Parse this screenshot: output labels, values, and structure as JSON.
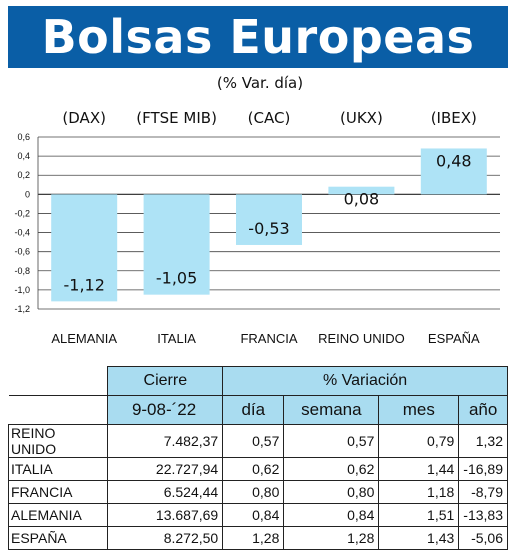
{
  "title": "Bolsas Europeas",
  "subtitle": "(% Var. día)",
  "chart_data": {
    "type": "bar",
    "indices": [
      "(DAX)",
      "(FTSE MIB)",
      "(CAC)",
      "(UKX)",
      "(IBEX)"
    ],
    "categories": [
      "ALEMANIA",
      "ITALIA",
      "FRANCIA",
      "REINO UNIDO",
      "ESPAÑA"
    ],
    "values": [
      -1.12,
      -1.05,
      -0.53,
      0.08,
      0.48
    ],
    "value_labels": [
      "-1,12",
      "-1,05",
      "-0,53",
      "0,08",
      "0,48"
    ],
    "yticks": [
      0.6,
      0.4,
      0.2,
      0,
      -0.2,
      -0.4,
      -0.6,
      -0.8,
      -1.0,
      -1.2
    ],
    "ytick_labels": [
      "0,6",
      "0,4",
      "0,2",
      "0",
      "-0,2",
      "-0,4",
      "-0,6",
      "-0,8",
      "-1,0",
      "-1,2"
    ],
    "ylim": [
      -1.2,
      0.6
    ],
    "grid": true,
    "bar_color": "#aee3f6"
  },
  "table": {
    "header_cierre": "Cierre",
    "header_variacion": "% Variación",
    "header_date": "9-08-´22",
    "header_dia": "día",
    "header_semana": "semana",
    "header_mes": "mes",
    "header_ano": "año",
    "rows": [
      {
        "name": "REINO UNIDO",
        "cierre": "7.482,37",
        "dia": "0,57",
        "semana": "0,57",
        "mes": "0,79",
        "ano": "1,32"
      },
      {
        "name": "ITALIA",
        "cierre": "22.727,94",
        "dia": "0,62",
        "semana": "0,62",
        "mes": "1,44",
        "ano": "-16,89"
      },
      {
        "name": "FRANCIA",
        "cierre": "6.524,44",
        "dia": "0,80",
        "semana": "0,80",
        "mes": "1,18",
        "ano": "-8,79"
      },
      {
        "name": "ALEMANIA",
        "cierre": "13.687,69",
        "dia": "0,84",
        "semana": "0,84",
        "mes": "1,51",
        "ano": "-13,83"
      },
      {
        "name": "ESPAÑA",
        "cierre": "8.272,50",
        "dia": "1,28",
        "semana": "1,28",
        "mes": "1,43",
        "ano": "-5,06"
      }
    ]
  }
}
